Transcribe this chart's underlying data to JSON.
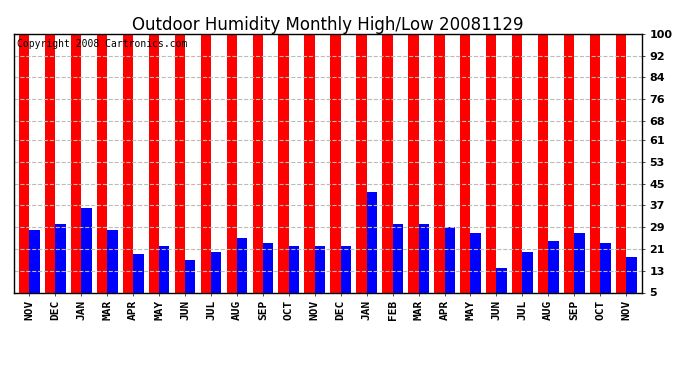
{
  "title": "Outdoor Humidity Monthly High/Low 20081129",
  "copyright": "Copyright 2008 Cartronics.com",
  "categories": [
    "NOV",
    "DEC",
    "JAN",
    "MAR",
    "APR",
    "MAY",
    "JUN",
    "JUL",
    "AUG",
    "SEP",
    "OCT",
    "NOV",
    "DEC",
    "JAN",
    "FEB",
    "MAR",
    "APR",
    "MAY",
    "JUN",
    "JUL",
    "AUG",
    "SEP",
    "OCT",
    "NOV"
  ],
  "high_values": [
    100,
    100,
    100,
    100,
    100,
    100,
    100,
    100,
    100,
    100,
    100,
    100,
    100,
    100,
    100,
    100,
    100,
    100,
    100,
    100,
    100,
    100,
    100,
    100
  ],
  "low_values": [
    28,
    30,
    36,
    28,
    19,
    22,
    17,
    20,
    25,
    23,
    22,
    22,
    22,
    42,
    30,
    30,
    29,
    27,
    14,
    20,
    24,
    27,
    23,
    18
  ],
  "high_color": "#ff0000",
  "low_color": "#0000ff",
  "bg_color": "#ffffff",
  "yticks": [
    5,
    13,
    21,
    29,
    37,
    45,
    53,
    61,
    68,
    76,
    84,
    92,
    100
  ],
  "ylim": [
    5,
    100
  ],
  "title_fontsize": 12,
  "tick_fontsize": 8,
  "grid_color": "#bbbbbb",
  "copyright_fontsize": 7
}
